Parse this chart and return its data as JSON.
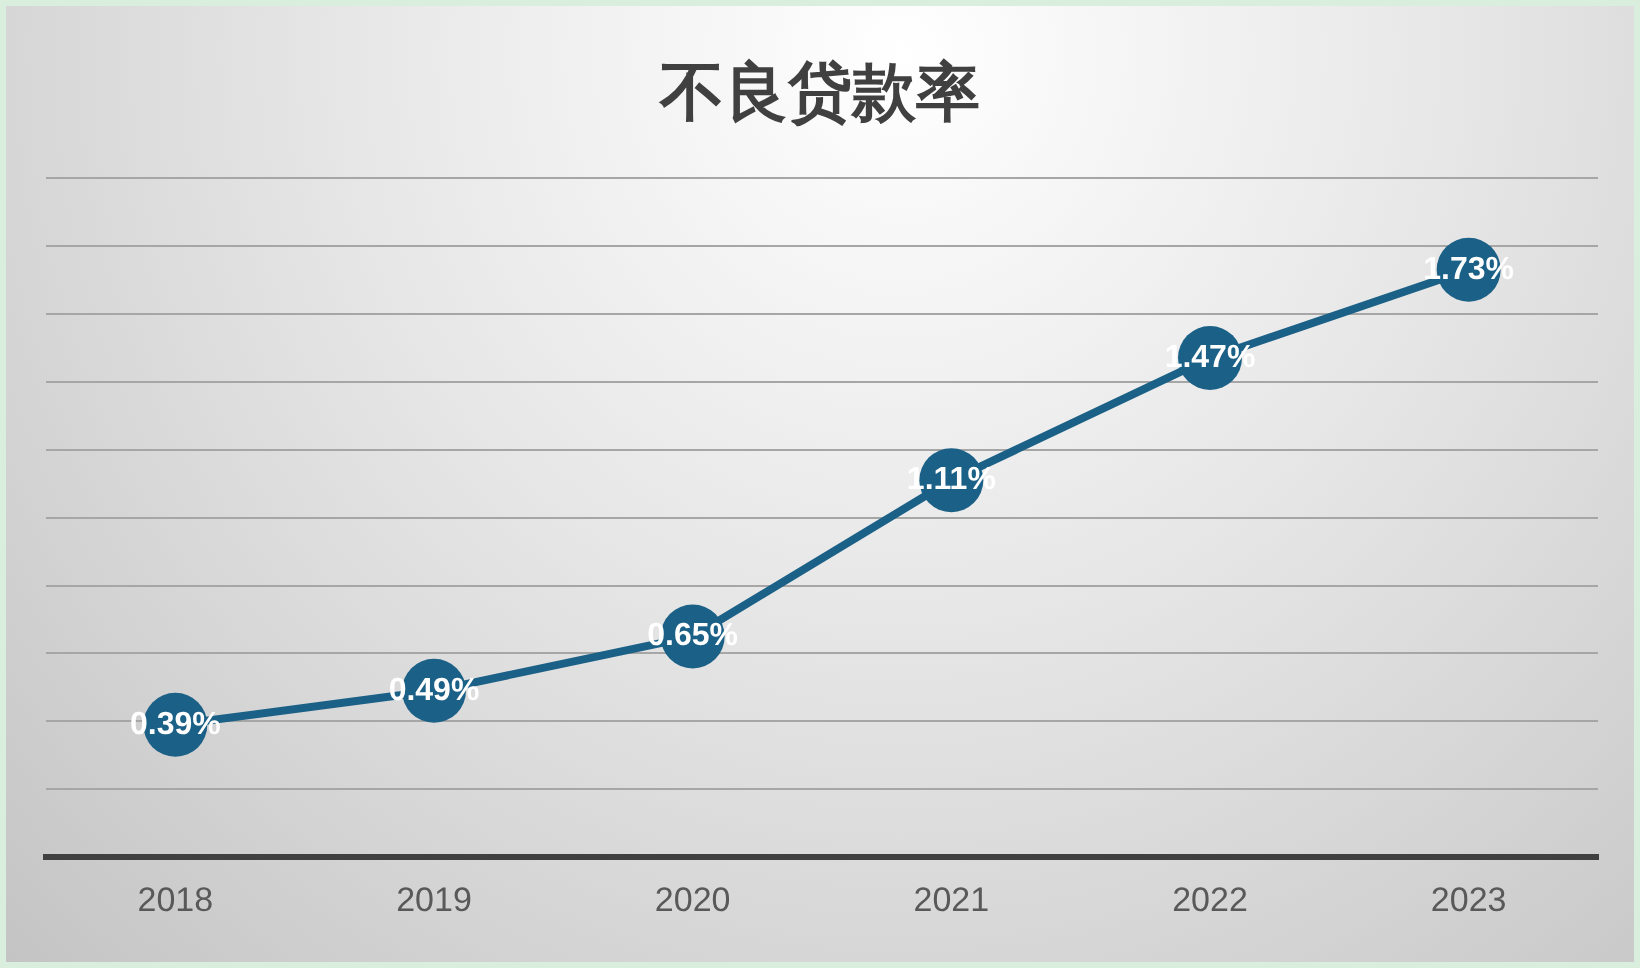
{
  "chart_data": {
    "type": "line",
    "title": "不良贷款率",
    "categories": [
      "2018",
      "2019",
      "2020",
      "2021",
      "2022",
      "2023"
    ],
    "series": [
      {
        "color": "#1b6086",
        "values": [
          0.39,
          0.49,
          0.65,
          1.11,
          1.47,
          1.73
        ],
        "value_labels": [
          "0.39%",
          "0.49%",
          "0.65%",
          "1.11%",
          "1.47%",
          "1.73%"
        ]
      }
    ],
    "ylim": [
      0,
      2
    ],
    "yticks": [
      {
        "value": 0,
        "label": null
      },
      {
        "value": 0.2,
        "label": null
      },
      {
        "value": 0.4,
        "label": null
      },
      {
        "value": 0.6,
        "label": null
      },
      {
        "value": 0.8,
        "label": null
      },
      {
        "value": 1,
        "label": null
      },
      {
        "value": 1.2,
        "label": null
      },
      {
        "value": 1.4,
        "label": null
      },
      {
        "value": 1.6,
        "label": null
      },
      {
        "value": 1.8,
        "label": null
      },
      {
        "value": 2,
        "label": null
      }
    ],
    "grid": "y",
    "legend": false,
    "tick_labels": "x",
    "marker": "circle",
    "line_style": "solid"
  }
}
